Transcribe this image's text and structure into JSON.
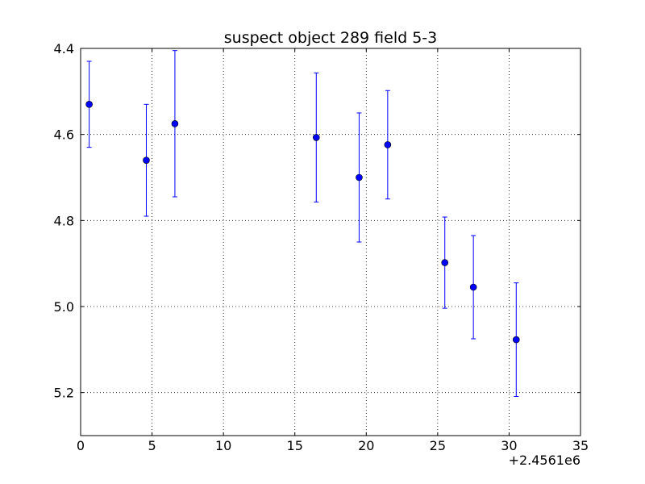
{
  "chart_data": {
    "type": "scatter",
    "title": "suspect object 289 field 5-3",
    "xlabel": "",
    "ylabel": "",
    "x_offset_label": "+2.4561e6",
    "xlim": [
      0,
      35
    ],
    "ylim": [
      5.3,
      4.4
    ],
    "y_inverted": true,
    "x_ticks": [
      0,
      5,
      10,
      15,
      20,
      25,
      30,
      35
    ],
    "x_tick_labels": [
      "0",
      "5",
      "10",
      "15",
      "20",
      "25",
      "30",
      "35"
    ],
    "y_ticks": [
      4.4,
      4.6,
      4.8,
      5.0,
      5.2
    ],
    "y_tick_labels": [
      "4.4",
      "4.6",
      "4.8",
      "5.0",
      "5.2"
    ],
    "grid": true,
    "marker_color": "#0000ff",
    "series": [
      {
        "points": [
          {
            "x": 0.6,
            "y": 4.53,
            "err": 0.1
          },
          {
            "x": 4.6,
            "y": 4.66,
            "err": 0.13
          },
          {
            "x": 6.6,
            "y": 4.575,
            "err": 0.17
          },
          {
            "x": 16.5,
            "y": 4.607,
            "err": 0.15
          },
          {
            "x": 19.5,
            "y": 4.7,
            "err": 0.15
          },
          {
            "x": 21.5,
            "y": 4.624,
            "err": 0.126
          },
          {
            "x": 25.5,
            "y": 4.898,
            "err": 0.106
          },
          {
            "x": 27.5,
            "y": 4.955,
            "err": 0.12
          },
          {
            "x": 30.5,
            "y": 5.077,
            "err": 0.132
          }
        ]
      }
    ]
  }
}
